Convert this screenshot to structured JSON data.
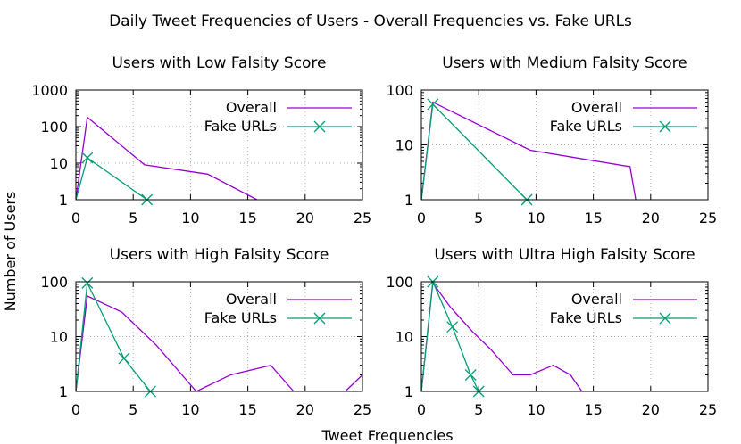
{
  "figure": {
    "title": "Daily Tweet Frequencies of Users - Overall Frequencies vs. Fake URLs",
    "xlabel": "Tweet Frequencies",
    "ylabel": "Number of Users"
  },
  "colors": {
    "overall": "#9400d3",
    "fake": "#009e73",
    "grid": "#b0b0b0"
  },
  "chart_data": [
    {
      "type": "line",
      "title": "Users with Low Falsity Score",
      "xlim": [
        0,
        25
      ],
      "ylim": [
        1,
        1000
      ],
      "yscale": "log",
      "xticks": [
        "0",
        "5",
        "10",
        "15",
        "20",
        "25"
      ],
      "yticks": [
        "1",
        "10",
        "100",
        "1000"
      ],
      "grid": true,
      "legend_position": "top-right",
      "series": [
        {
          "name": "Overall",
          "marker": "none",
          "x": [
            0,
            1,
            6,
            11.5,
            15.8
          ],
          "y": [
            1,
            180,
            9,
            5,
            1
          ]
        },
        {
          "name": "Fake URLs",
          "marker": "x",
          "x": [
            0,
            1,
            6.2
          ],
          "y": [
            1,
            14,
            1
          ]
        }
      ]
    },
    {
      "type": "line",
      "title": "Users with Medium Falsity Score",
      "xlim": [
        0,
        25
      ],
      "ylim": [
        1,
        100
      ],
      "yscale": "log",
      "xticks": [
        "0",
        "5",
        "10",
        "15",
        "20",
        "25"
      ],
      "yticks": [
        "1",
        "10",
        "100"
      ],
      "grid": true,
      "legend_position": "top-right",
      "series": [
        {
          "name": "Overall",
          "marker": "none",
          "x": [
            0,
            1,
            9.5,
            18.2,
            18.7
          ],
          "y": [
            1,
            60,
            8,
            4,
            1
          ]
        },
        {
          "name": "Fake URLs",
          "marker": "x",
          "x": [
            0,
            1,
            9.2
          ],
          "y": [
            1,
            55,
            1
          ]
        }
      ]
    },
    {
      "type": "line",
      "title": "Users with High Falsity Score",
      "xlim": [
        0,
        25
      ],
      "ylim": [
        1,
        100
      ],
      "yscale": "log",
      "xticks": [
        "0",
        "5",
        "10",
        "15",
        "20",
        "25"
      ],
      "yticks": [
        "1",
        "10",
        "100"
      ],
      "grid": true,
      "legend_position": "top-right",
      "series": [
        {
          "name": "Overall",
          "marker": "none",
          "x": [
            0,
            1,
            4,
            7,
            10.5,
            13.5,
            17,
            19,
            23.5,
            25
          ],
          "y": [
            1,
            55,
            28,
            7,
            1,
            2,
            3,
            1,
            1,
            2
          ]
        },
        {
          "name": "Fake URLs",
          "marker": "x",
          "x": [
            0,
            1,
            4.2,
            6.5
          ],
          "y": [
            1,
            95,
            4,
            1
          ]
        }
      ]
    },
    {
      "type": "line",
      "title": "Users with Ultra High Falsity Score",
      "xlim": [
        0,
        25
      ],
      "ylim": [
        1,
        100
      ],
      "yscale": "log",
      "xticks": [
        "0",
        "5",
        "10",
        "15",
        "20",
        "25"
      ],
      "yticks": [
        "1",
        "10",
        "100"
      ],
      "grid": true,
      "legend_position": "top-right",
      "series": [
        {
          "name": "Overall",
          "marker": "none",
          "x": [
            0,
            1,
            2.5,
            4.5,
            6,
            8,
            9.5,
            11.5,
            13,
            14
          ],
          "y": [
            1,
            95,
            35,
            12,
            6,
            2,
            2,
            3,
            2,
            1
          ]
        },
        {
          "name": "Fake URLs",
          "marker": "x",
          "x": [
            0,
            1,
            2.7,
            4.3,
            5
          ],
          "y": [
            1,
            100,
            15,
            2,
            1
          ]
        }
      ]
    }
  ]
}
